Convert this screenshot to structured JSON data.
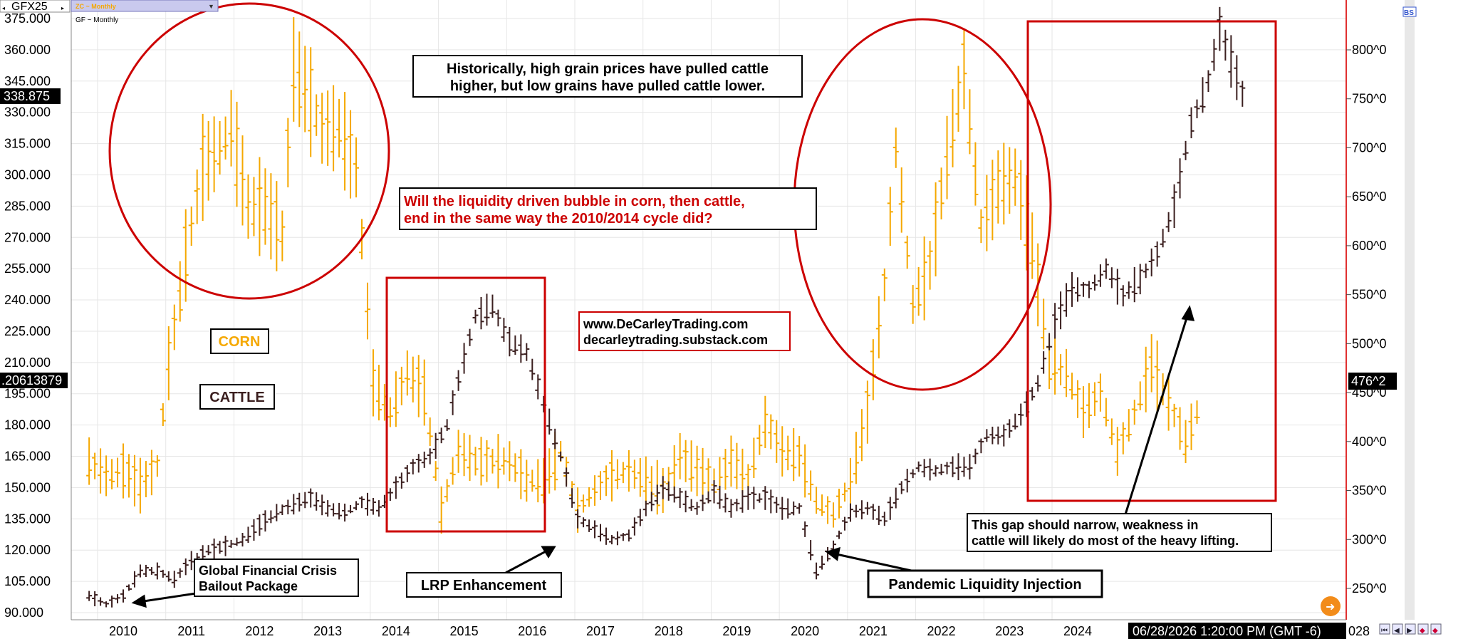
{
  "header": {
    "symbol": "GFX25",
    "study_selector": "ZC ~ Monthly",
    "subtitle": "GF ~ Monthly",
    "corner_icon": "BS"
  },
  "status_bar": {
    "timestamp": "06/28/2026 1:20:00 PM (GMT -6)",
    "truncated_label": "028"
  },
  "colors": {
    "corn": "#f5a800",
    "cattle": "#3b1f1f",
    "annotation_red": "#cc0000",
    "right_border": "#e03030",
    "grid": "#e6e6e6",
    "nav_button": "#f28c1a"
  },
  "chart_data": {
    "type": "ohlc-bar",
    "x_ticks": [
      "2010",
      "2011",
      "2012",
      "2013",
      "2014",
      "2015",
      "2016",
      "2017",
      "2018",
      "2019",
      "2020",
      "2021",
      "2022",
      "2023",
      "2024"
    ],
    "left_axis": {
      "ticks": [
        "375.000",
        "360.000",
        "345.000",
        "330.000",
        "315.000",
        "300.000",
        "285.000",
        "270.000",
        "255.000",
        "240.000",
        "225.000",
        "210.000",
        "195.000",
        "180.000",
        "165.000",
        "150.000",
        "135.000",
        "120.000",
        "105.000",
        "90.000"
      ],
      "last_value_label": "338.875",
      "marker_label": ".20613879",
      "range": [
        88,
        378
      ]
    },
    "right_axis": {
      "ticks": [
        "800^0",
        "750^0",
        "700^0",
        "650^0",
        "600^0",
        "550^0",
        "500^0",
        "450^0",
        "400^0",
        "350^0",
        "300^0",
        "250^0"
      ],
      "last_value_label": "476^2",
      "range": [
        228,
        845
      ]
    },
    "series": [
      {
        "name": "CORN",
        "axis": "right",
        "points": [
          [
            "2009-07",
            380
          ],
          [
            "2009-10",
            365
          ],
          [
            "2010-01",
            370
          ],
          [
            "2010-04",
            355
          ],
          [
            "2010-07",
            375
          ],
          [
            "2010-09",
            480
          ],
          [
            "2010-12",
            590
          ],
          [
            "2011-03",
            680
          ],
          [
            "2011-06",
            700
          ],
          [
            "2011-08",
            720
          ],
          [
            "2011-11",
            640
          ],
          [
            "2012-02",
            640
          ],
          [
            "2012-05",
            610
          ],
          [
            "2012-07",
            780
          ],
          [
            "2012-09",
            760
          ],
          [
            "2012-12",
            720
          ],
          [
            "2013-03",
            720
          ],
          [
            "2013-06",
            680
          ],
          [
            "2013-09",
            460
          ],
          [
            "2013-12",
            430
          ],
          [
            "2014-03",
            470
          ],
          [
            "2014-06",
            450
          ],
          [
            "2014-09",
            330
          ],
          [
            "2014-12",
            390
          ],
          [
            "2015-03",
            380
          ],
          [
            "2015-06",
            380
          ],
          [
            "2015-09",
            380
          ],
          [
            "2015-12",
            360
          ],
          [
            "2016-03",
            360
          ],
          [
            "2016-06",
            390
          ],
          [
            "2016-09",
            330
          ],
          [
            "2016-12",
            350
          ],
          [
            "2017-03",
            365
          ],
          [
            "2017-06",
            370
          ],
          [
            "2017-09",
            360
          ],
          [
            "2017-12",
            350
          ],
          [
            "2018-03",
            385
          ],
          [
            "2018-06",
            370
          ],
          [
            "2018-09",
            355
          ],
          [
            "2018-12",
            380
          ],
          [
            "2019-03",
            365
          ],
          [
            "2019-06",
            420
          ],
          [
            "2019-09",
            390
          ],
          [
            "2019-12",
            385
          ],
          [
            "2020-03",
            340
          ],
          [
            "2020-06",
            325
          ],
          [
            "2020-09",
            360
          ],
          [
            "2020-12",
            430
          ],
          [
            "2021-03",
            560
          ],
          [
            "2021-05",
            700
          ],
          [
            "2021-08",
            540
          ],
          [
            "2021-11",
            580
          ],
          [
            "2022-02",
            690
          ],
          [
            "2022-05",
            780
          ],
          [
            "2022-08",
            620
          ],
          [
            "2022-11",
            660
          ],
          [
            "2023-02",
            670
          ],
          [
            "2023-05",
            600
          ],
          [
            "2023-08",
            480
          ],
          [
            "2023-11",
            470
          ],
          [
            "2024-02",
            430
          ],
          [
            "2024-05",
            450
          ],
          [
            "2024-08",
            390
          ],
          [
            "2024-11",
            430
          ],
          [
            "2025-02",
            480
          ],
          [
            "2025-05",
            440
          ],
          [
            "2025-08",
            400
          ],
          [
            "2025-10",
            430
          ]
        ]
      },
      {
        "name": "CATTLE",
        "axis": "left",
        "points": [
          [
            "2009-07",
            98
          ],
          [
            "2009-10",
            94
          ],
          [
            "2010-01",
            98
          ],
          [
            "2010-04",
            110
          ],
          [
            "2010-07",
            110
          ],
          [
            "2010-10",
            106
          ],
          [
            "2011-01",
            115
          ],
          [
            "2011-04",
            120
          ],
          [
            "2011-07",
            122
          ],
          [
            "2011-10",
            125
          ],
          [
            "2012-01",
            132
          ],
          [
            "2012-04",
            138
          ],
          [
            "2012-07",
            142
          ],
          [
            "2012-10",
            145
          ],
          [
            "2013-01",
            140
          ],
          [
            "2013-04",
            138
          ],
          [
            "2013-07",
            143
          ],
          [
            "2013-10",
            140
          ],
          [
            "2014-01",
            150
          ],
          [
            "2014-04",
            160
          ],
          [
            "2014-07",
            165
          ],
          [
            "2014-10",
            180
          ],
          [
            "2015-01",
            212
          ],
          [
            "2015-03",
            232
          ],
          [
            "2015-06",
            237
          ],
          [
            "2015-09",
            220
          ],
          [
            "2015-12",
            215
          ],
          [
            "2016-03",
            190
          ],
          [
            "2016-06",
            165
          ],
          [
            "2016-09",
            135
          ],
          [
            "2016-12",
            130
          ],
          [
            "2017-03",
            125
          ],
          [
            "2017-06",
            127
          ],
          [
            "2017-09",
            140
          ],
          [
            "2017-12",
            150
          ],
          [
            "2018-03",
            145
          ],
          [
            "2018-06",
            140
          ],
          [
            "2018-09",
            148
          ],
          [
            "2018-12",
            140
          ],
          [
            "2019-03",
            145
          ],
          [
            "2019-06",
            145
          ],
          [
            "2019-09",
            140
          ],
          [
            "2019-12",
            140
          ],
          [
            "2020-03",
            110
          ],
          [
            "2020-06",
            122
          ],
          [
            "2020-09",
            138
          ],
          [
            "2020-12",
            140
          ],
          [
            "2021-03",
            135
          ],
          [
            "2021-06",
            150
          ],
          [
            "2021-09",
            160
          ],
          [
            "2021-12",
            158
          ],
          [
            "2022-03",
            160
          ],
          [
            "2022-06",
            160
          ],
          [
            "2022-09",
            175
          ],
          [
            "2022-12",
            175
          ],
          [
            "2023-03",
            185
          ],
          [
            "2023-06",
            200
          ],
          [
            "2023-09",
            230
          ],
          [
            "2023-12",
            245
          ],
          [
            "2024-03",
            245
          ],
          [
            "2024-06",
            255
          ],
          [
            "2024-09",
            242
          ],
          [
            "2024-12",
            250
          ],
          [
            "2025-03",
            262
          ],
          [
            "2025-06",
            285
          ],
          [
            "2025-09",
            325
          ],
          [
            "2025-12",
            345
          ],
          [
            "2026-02",
            370
          ],
          [
            "2026-06",
            338.875
          ]
        ]
      }
    ],
    "labels": {
      "corn": "CORN",
      "cattle": "CATTLE"
    },
    "annotations": {
      "historical_line1": "Historically, high grain prices have pulled cattle",
      "historical_line2": "higher, but low grains have pulled cattle lower.",
      "question_line1": "Will the liquidity driven bubble in corn, then cattle,",
      "question_line2": "end in the same way the 2010/2014 cycle did?",
      "website_line1": "www.DeCarleyTrading.com",
      "website_line2": "decarleytrading.substack.com",
      "gfc_line1": "Global Financial Crisis",
      "gfc_line2": "Bailout Package",
      "lrp": "LRP Enhancement",
      "pandemic": "Pandemic Liquidity Injection",
      "gap_line1": "This gap should narrow, weakness in",
      "gap_line2": "cattle will likely do most of the heavy lifting."
    }
  }
}
